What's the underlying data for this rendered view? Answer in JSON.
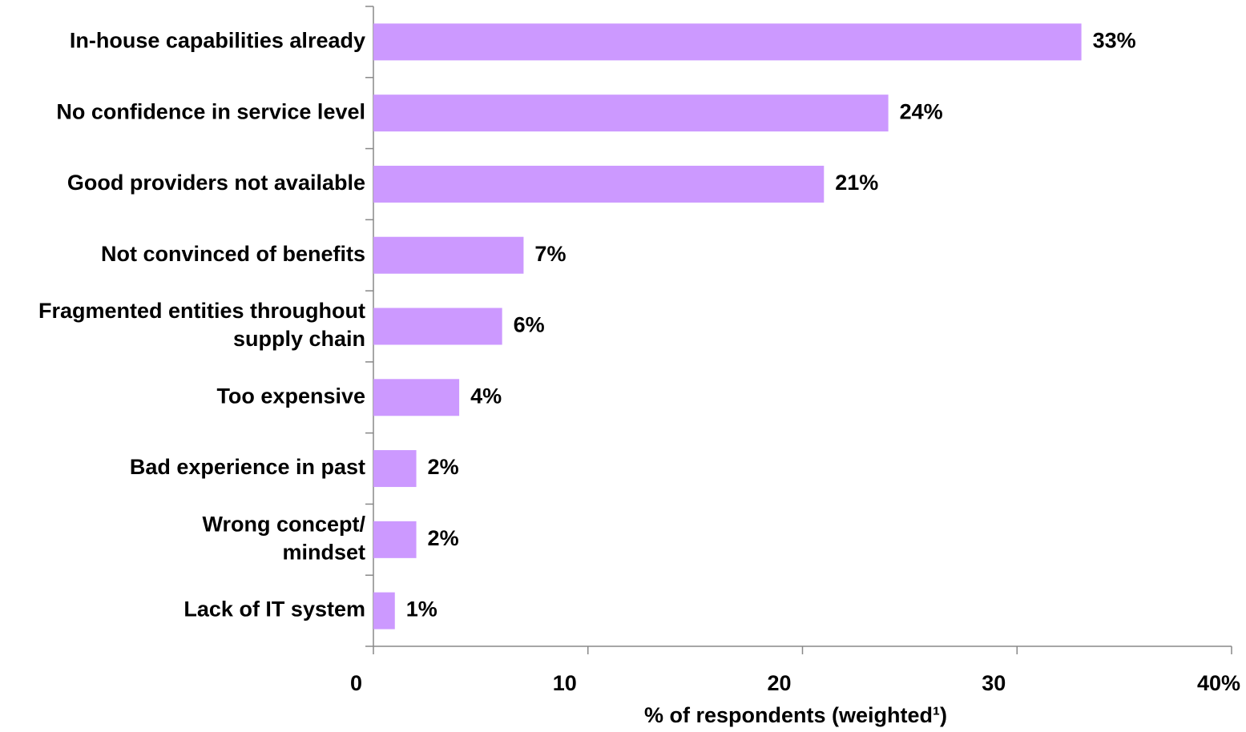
{
  "chart_data": {
    "type": "barh",
    "categories": [
      "In-house capabilities already",
      "No confidence in service level",
      "Good providers not available",
      "Not convinced of benefits",
      "Fragmented entities throughout\nsupply chain",
      "Too expensive",
      "Bad experience in past",
      "Wrong concept/\nmindset",
      "Lack of IT system"
    ],
    "values": [
      33,
      24,
      21,
      7,
      6,
      4,
      2,
      2,
      1
    ],
    "value_labels": [
      "33%",
      "24%",
      "21%",
      "7%",
      "6%",
      "4%",
      "2%",
      "2%",
      "1%"
    ],
    "color": "#cc99ff",
    "xlim": [
      0,
      40
    ],
    "xticks": [
      0,
      10,
      20,
      30,
      {
        "value": 40,
        "label": "40%"
      }
    ],
    "x_label": "% of respondents (weighted¹)"
  }
}
